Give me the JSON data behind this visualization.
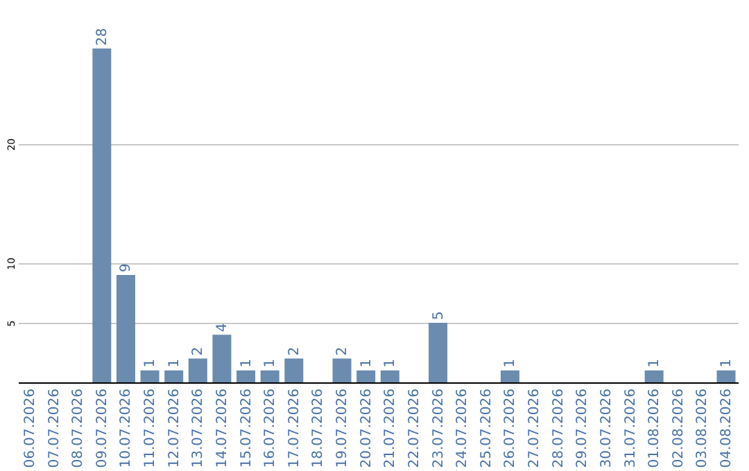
{
  "chart_data": {
    "type": "bar",
    "categories": [
      "06.07.2026",
      "07.07.2026",
      "08.07.2026",
      "09.07.2026",
      "10.07.2026",
      "11.07.2026",
      "12.07.2026",
      "13.07.2026",
      "14.07.2026",
      "15.07.2026",
      "16.07.2026",
      "17.07.2026",
      "18.07.2026",
      "19.07.2026",
      "20.07.2026",
      "21.07.2026",
      "22.07.2026",
      "23.07.2026",
      "24.07.2026",
      "25.07.2026",
      "26.07.2026",
      "27.07.2026",
      "28.07.2026",
      "29.07.2026",
      "30.07.2026",
      "31.07.2026",
      "01.08.2026",
      "02.08.2026",
      "03.08.2026",
      "04.08.2026"
    ],
    "values": [
      0,
      0,
      0,
      28,
      9,
      1,
      1,
      2,
      4,
      1,
      1,
      2,
      0,
      2,
      1,
      1,
      0,
      5,
      0,
      0,
      1,
      0,
      0,
      0,
      0,
      0,
      1,
      0,
      0,
      1
    ],
    "value_labels": [
      null,
      null,
      null,
      "28",
      "9",
      "1",
      "1",
      "2",
      "4",
      "1",
      "1",
      "2",
      null,
      "2",
      "1",
      "1",
      null,
      "5",
      null,
      null,
      "1",
      null,
      null,
      null,
      null,
      null,
      "1",
      null,
      null,
      "1"
    ],
    "color": "#6b8cae",
    "ylim": [
      0,
      28
    ],
    "yticks": [
      5,
      10,
      20
    ],
    "grid": "y"
  }
}
